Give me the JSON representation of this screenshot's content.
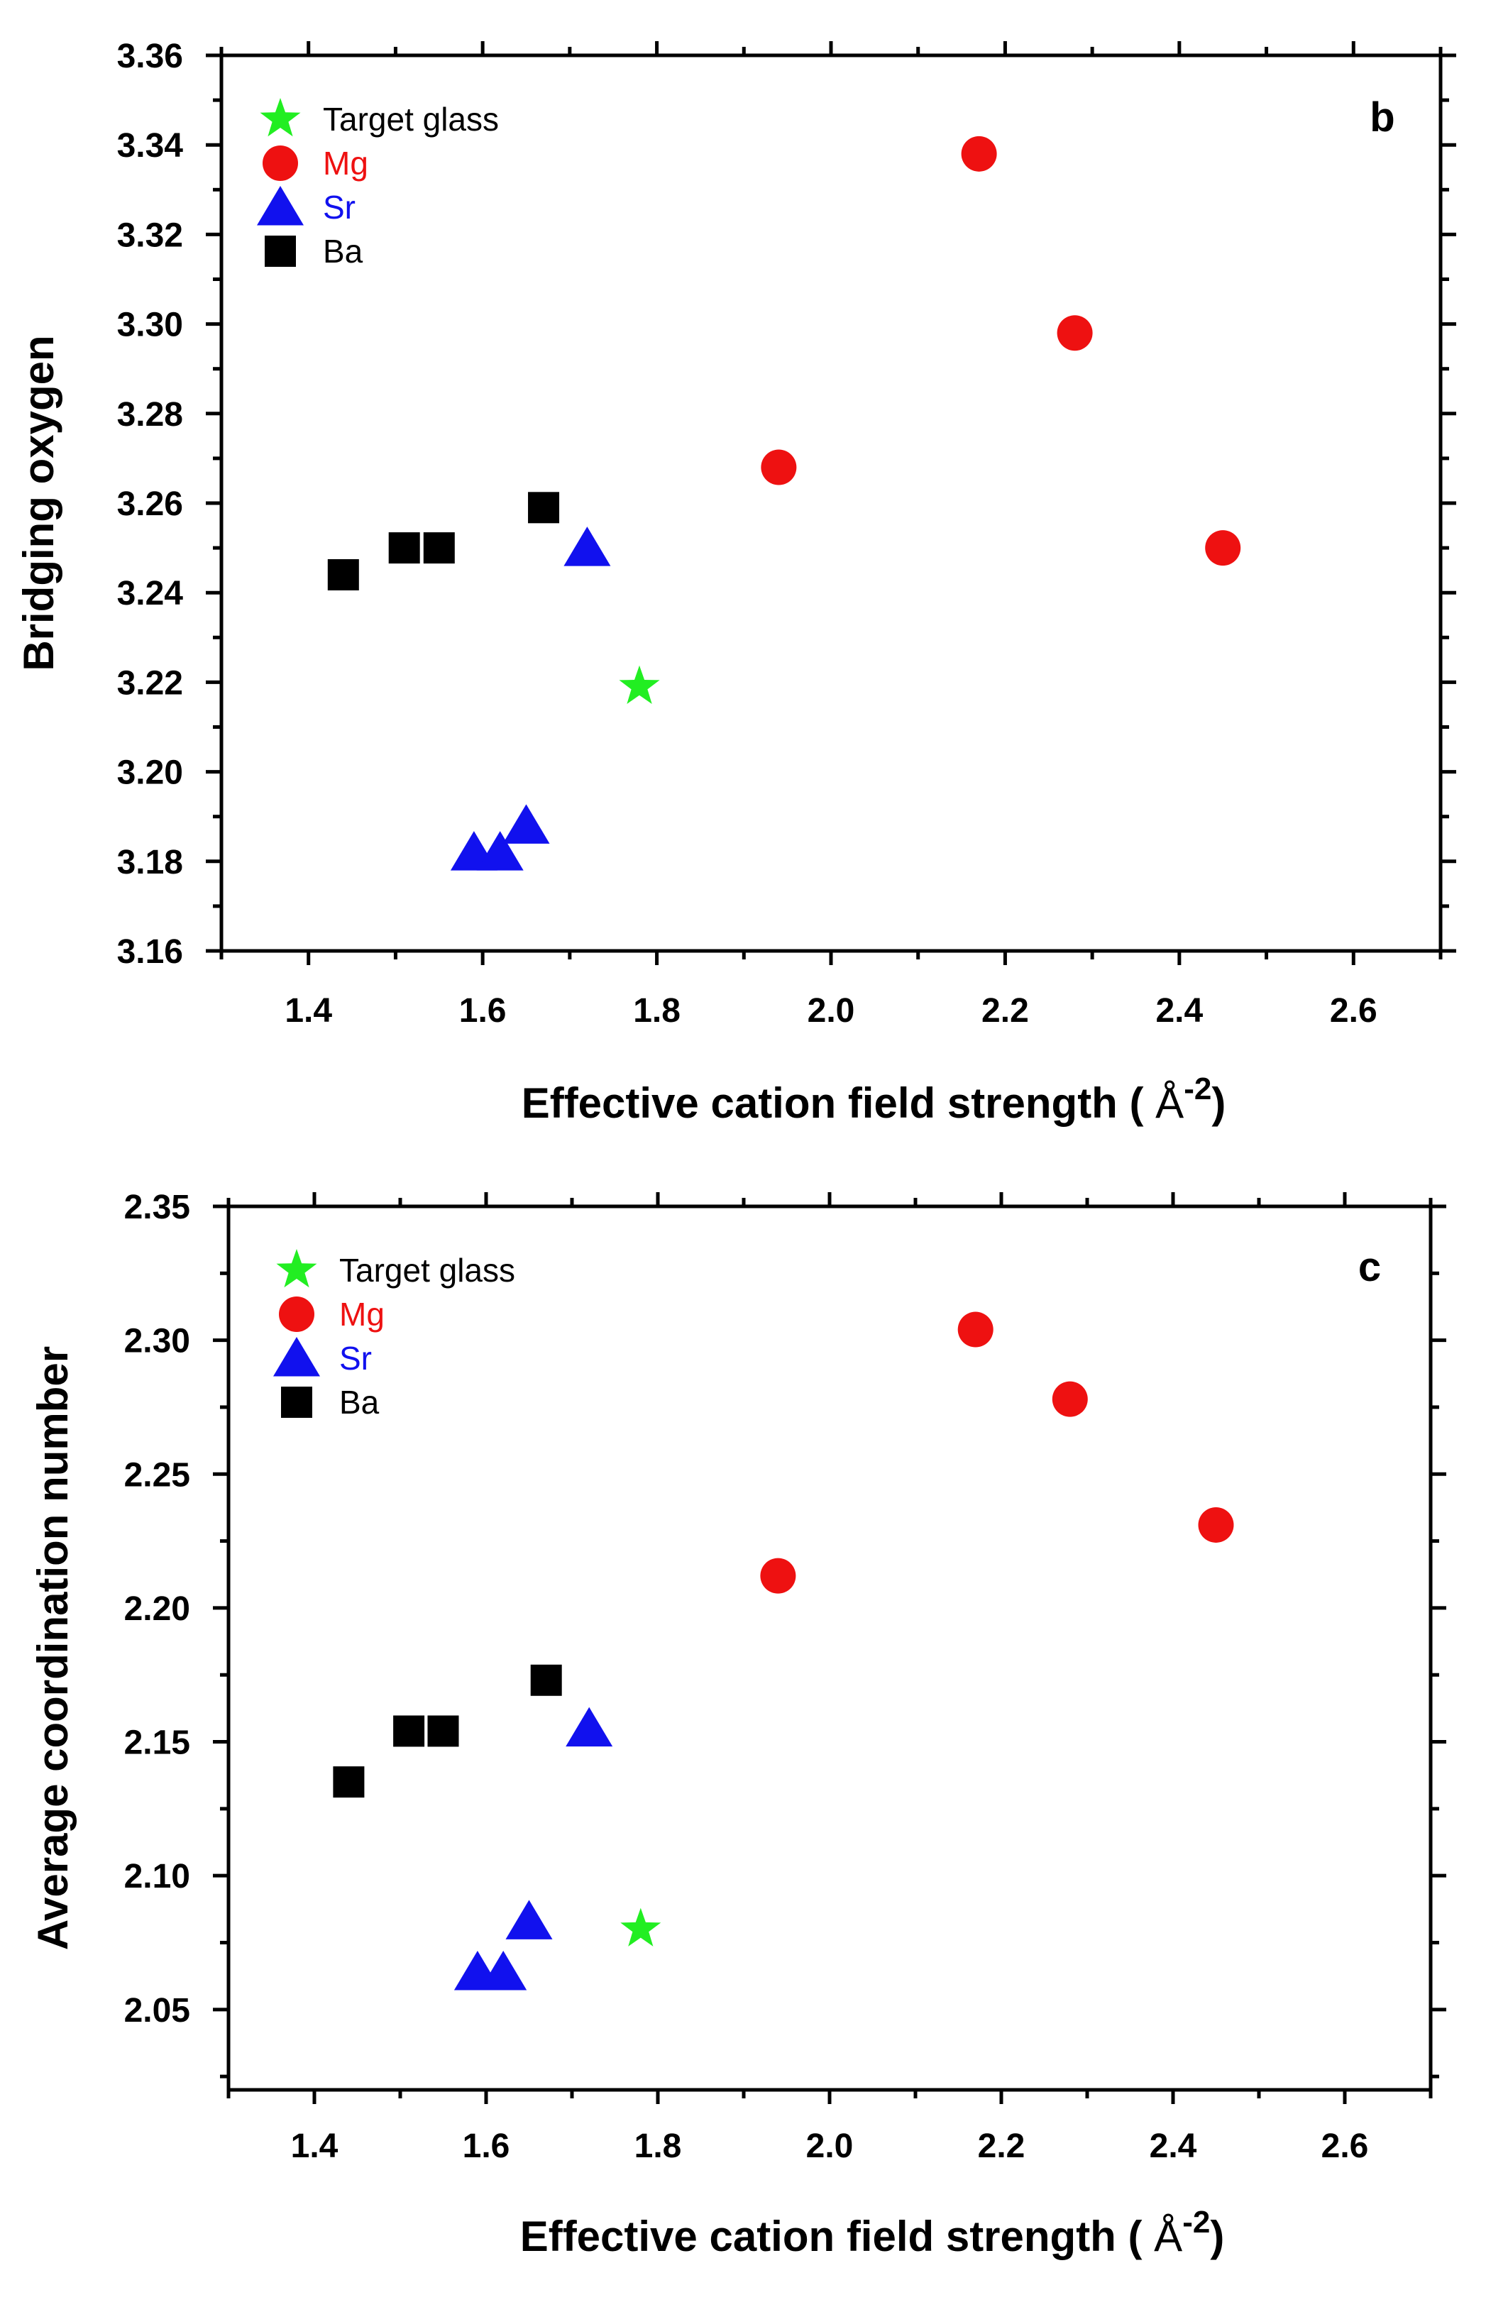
{
  "chart_data": [
    {
      "type": "scatter",
      "panel_label": "b",
      "xlabel": "Effective cation field strength (",
      "xlabel_unit": "Å",
      "xlabel_exp": "-2",
      "xlabel_close": ")",
      "ylabel": "Bridging oxygen",
      "xlim": [
        1.3,
        2.7
      ],
      "ylim": [
        3.16,
        3.36
      ],
      "xticks": [
        "1.4",
        "1.6",
        "1.8",
        "2.0",
        "2.2",
        "2.4",
        "2.6"
      ],
      "yticks": [
        "3.16",
        "3.18",
        "3.20",
        "3.22",
        "3.24",
        "3.26",
        "3.28",
        "3.30",
        "3.32",
        "3.34",
        "3.36"
      ],
      "legend_position": "top-left",
      "series": [
        {
          "name": "Target glass",
          "marker": "star",
          "color": "#22ee22",
          "points": [
            [
              1.78,
              3.219
            ]
          ]
        },
        {
          "name": "Mg",
          "marker": "circle",
          "color": "#ee1111",
          "points": [
            [
              1.94,
              3.268
            ],
            [
              2.17,
              3.338
            ],
            [
              2.28,
              3.298
            ],
            [
              2.45,
              3.25
            ]
          ]
        },
        {
          "name": "Sr",
          "marker": "triangle",
          "color": "#1111ee",
          "points": [
            [
              1.59,
              3.182
            ],
            [
              1.62,
              3.182
            ],
            [
              1.65,
              3.188
            ],
            [
              1.72,
              3.25
            ]
          ]
        },
        {
          "name": "Ba",
          "marker": "square",
          "color": "#000000",
          "points": [
            [
              1.44,
              3.244
            ],
            [
              1.51,
              3.25
            ],
            [
              1.55,
              3.25
            ],
            [
              1.67,
              3.259
            ]
          ]
        }
      ]
    },
    {
      "type": "scatter",
      "panel_label": "c",
      "xlabel": "Effective cation field strength (",
      "xlabel_unit": "Å",
      "xlabel_exp": "-2",
      "xlabel_close": ")",
      "ylabel": "Average coordination number",
      "xlim": [
        1.3,
        2.7
      ],
      "ylim": [
        2.02,
        2.35
      ],
      "xticks": [
        "1.4",
        "1.6",
        "1.8",
        "2.0",
        "2.2",
        "2.4",
        "2.6"
      ],
      "yticks": [
        "2.05",
        "2.10",
        "2.15",
        "2.20",
        "2.25",
        "2.30",
        "2.35"
      ],
      "legend_position": "top-left",
      "series": [
        {
          "name": "Target glass",
          "marker": "star",
          "color": "#22ee22",
          "points": [
            [
              1.78,
              2.08
            ]
          ]
        },
        {
          "name": "Mg",
          "marker": "circle",
          "color": "#ee1111",
          "points": [
            [
              1.94,
              2.212
            ],
            [
              2.17,
              2.304
            ],
            [
              2.28,
              2.278
            ],
            [
              2.45,
              2.231
            ]
          ]
        },
        {
          "name": "Sr",
          "marker": "triangle",
          "color": "#1111ee",
          "points": [
            [
              1.59,
              2.064
            ],
            [
              1.62,
              2.064
            ],
            [
              1.65,
              2.083
            ],
            [
              1.72,
              2.155
            ]
          ]
        },
        {
          "name": "Ba",
          "marker": "square",
          "color": "#000000",
          "points": [
            [
              1.44,
              2.135
            ],
            [
              1.51,
              2.154
            ],
            [
              1.55,
              2.154
            ],
            [
              1.67,
              2.173
            ]
          ]
        }
      ]
    }
  ]
}
